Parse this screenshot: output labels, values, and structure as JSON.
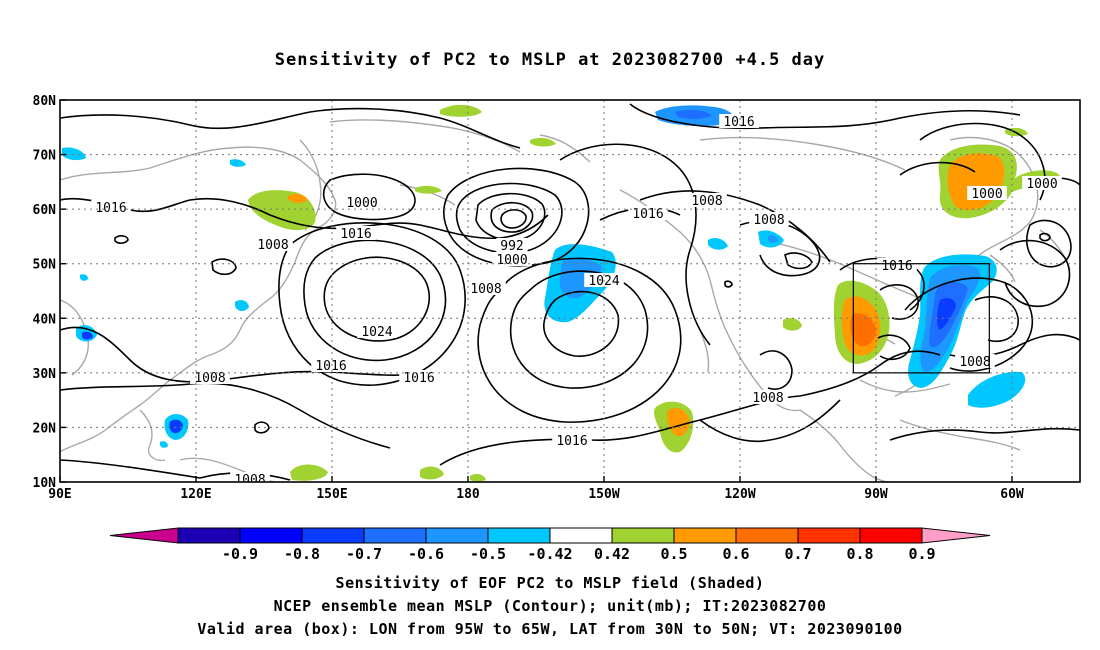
{
  "title": "Sensitivity of PC2 to MSLP at 2023082700 +4.5 day",
  "axes": {
    "lat_ticks": [
      {
        "value": 80,
        "label": "80N"
      },
      {
        "value": 70,
        "label": "70N"
      },
      {
        "value": 60,
        "label": "60N"
      },
      {
        "value": 50,
        "label": "50N"
      },
      {
        "value": 40,
        "label": "40N"
      },
      {
        "value": 30,
        "label": "30N"
      },
      {
        "value": 20,
        "label": "20N"
      },
      {
        "value": 10,
        "label": "10N"
      }
    ],
    "lon_ticks": [
      {
        "value": 90,
        "label": "90E"
      },
      {
        "value": 120,
        "label": "120E"
      },
      {
        "value": 150,
        "label": "150E"
      },
      {
        "value": 180,
        "label": "180"
      },
      {
        "value": 210,
        "label": "150W"
      },
      {
        "value": 240,
        "label": "120W"
      },
      {
        "value": 270,
        "label": "90W"
      },
      {
        "value": 300,
        "label": "60W"
      }
    ],
    "lon_range": [
      90,
      315
    ],
    "lat_range": [
      10,
      80
    ],
    "grid": "dotted"
  },
  "valid_box": {
    "lon": [
      265,
      295
    ],
    "lat": [
      30,
      50
    ]
  },
  "colorbar": {
    "labels": [
      "-0.9",
      "-0.8",
      "-0.7",
      "-0.6",
      "-0.5",
      "-0.42",
      "0.42",
      "0.5",
      "0.6",
      "0.7",
      "0.8",
      "0.9"
    ],
    "colors": [
      "#1c00b4",
      "#0000ff",
      "#0a3cff",
      "#1e6eff",
      "#1e96ff",
      "#00c8ff",
      "#ffffff",
      "#a0d232",
      "#ff9b00",
      "#ff6e00",
      "#ff3200",
      "#ff0000"
    ],
    "low_arrow_color": "#c8008c",
    "high_arrow_color": "#ff9ec8"
  },
  "contour_labels": [
    {
      "text": "1016",
      "lon": 739,
      "lat": 0
    },
    {
      "text": "1016",
      "lon": 111,
      "lat": 0
    },
    {
      "text": "1000",
      "lon": 362,
      "lat": 0
    },
    {
      "text": "1016",
      "lon": 356,
      "lat": 0
    },
    {
      "text": "1008",
      "lon": 273,
      "lat": 0
    },
    {
      "text": "992",
      "lon": 512,
      "lat": 0
    },
    {
      "text": "1000",
      "lon": 512,
      "lat": 0
    },
    {
      "text": "1016",
      "lon": 648,
      "lat": 0
    },
    {
      "text": "1008",
      "lon": 707,
      "lat": 0
    },
    {
      "text": "1008",
      "lon": 769,
      "lat": 0
    },
    {
      "text": "1000",
      "lon": 987,
      "lat": 0
    },
    {
      "text": "1000",
      "lon": 1042,
      "lat": 0
    },
    {
      "text": "1024",
      "lon": 604,
      "lat": 0
    },
    {
      "text": "1008",
      "lon": 486,
      "lat": 0
    },
    {
      "text": "1024",
      "lon": 377,
      "lat": 0
    },
    {
      "text": "1016",
      "lon": 897,
      "lat": 0
    },
    {
      "text": "1016",
      "lon": 331,
      "lat": 0
    },
    {
      "text": "1016",
      "lon": 419,
      "lat": 0
    },
    {
      "text": "1008",
      "lon": 210,
      "lat": 0
    },
    {
      "text": "1008",
      "lon": 975,
      "lat": 0
    },
    {
      "text": "1008",
      "lon": 768,
      "lat": 0
    },
    {
      "text": "1016",
      "lon": 572,
      "lat": 0
    },
    {
      "text": "1008",
      "lon": 250,
      "lat": 0
    }
  ],
  "captions": [
    "Sensitivity of EOF PC2 to MSLP field (Shaded)",
    "NCEP ensemble mean MSLP (Contour); unit(mb); IT:2023082700",
    "Valid area (box): LON from 95W to 65W, LAT from 30N to 50N; VT: 2023090100"
  ]
}
